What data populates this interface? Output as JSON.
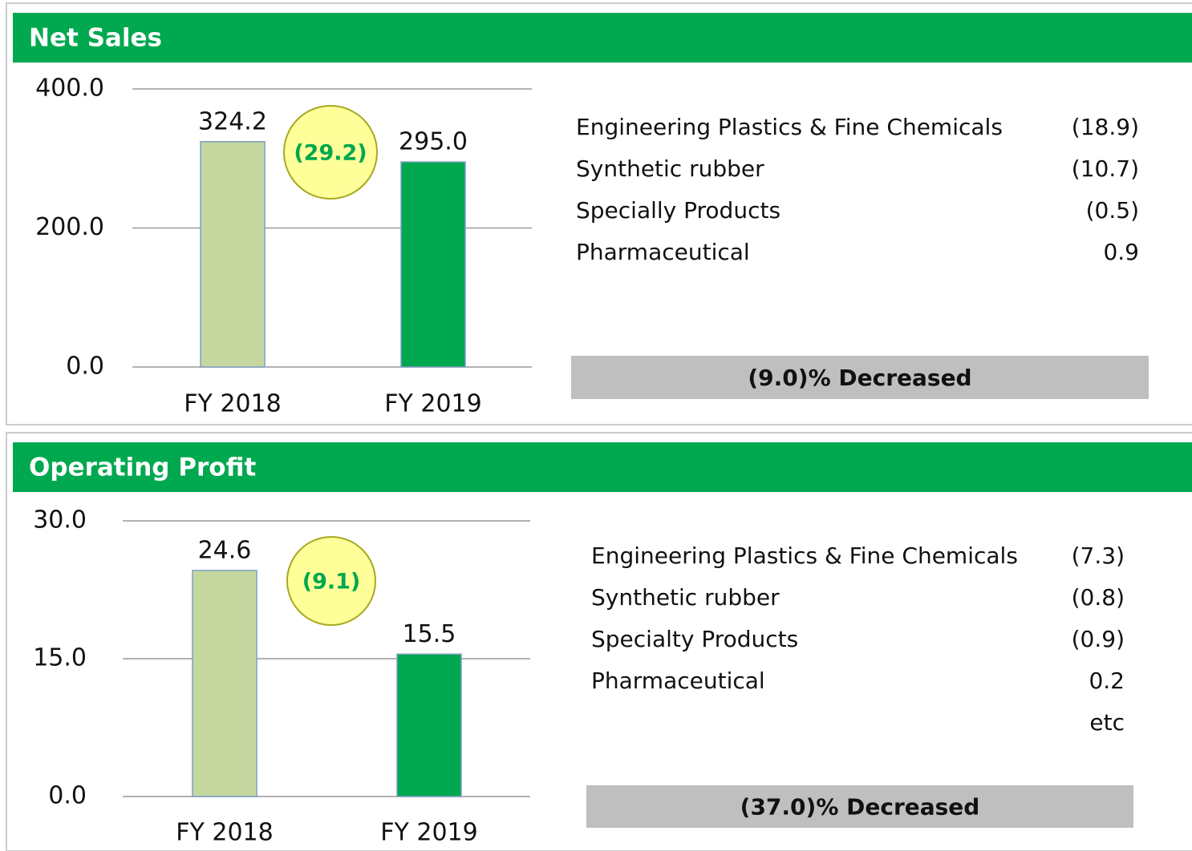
{
  "chart_data": [
    {
      "type": "bar",
      "title": "Net Sales",
      "categories": [
        "FY 2018",
        "FY 2019"
      ],
      "values": [
        324.2,
        295.0
      ],
      "value_labels": [
        "324.2",
        "295.0"
      ],
      "colors": [
        "#c5d79f",
        "#00a84f"
      ],
      "ylim": [
        0,
        400
      ],
      "yticks": [
        {
          "value": 0,
          "label": "0.0"
        },
        {
          "value": 200,
          "label": "200.0"
        },
        {
          "value": 400,
          "label": "400.0"
        }
      ],
      "grid": true,
      "change": "(29.2)",
      "breakdown": [
        {
          "label": "Engineering Plastics &  Fine Chemicals",
          "value": "(18.9)"
        },
        {
          "label": "Synthetic rubber",
          "value": "(10.7)"
        },
        {
          "label": "Specially Products",
          "value": "(0.5)"
        },
        {
          "label": "Pharmaceutical",
          "value": "0.9"
        }
      ],
      "summary": "(9.0)% Decreased"
    },
    {
      "type": "bar",
      "title": "Operating Profit",
      "categories": [
        "FY 2018",
        "FY 2019"
      ],
      "values": [
        24.6,
        15.5
      ],
      "value_labels": [
        "24.6",
        "15.5"
      ],
      "colors": [
        "#c5d79f",
        "#00a84f"
      ],
      "ylim": [
        0,
        30
      ],
      "yticks": [
        {
          "value": 0,
          "label": "0.0"
        },
        {
          "value": 15,
          "label": "15.0"
        },
        {
          "value": 30,
          "label": "30.0"
        }
      ],
      "grid": true,
      "change": "(9.1)",
      "breakdown": [
        {
          "label": "Engineering Plastics & Fine Chemicals",
          "value": "(7.3)"
        },
        {
          "label": "Synthetic rubber",
          "value": "(0.8)"
        },
        {
          "label": "Specialty Products",
          "value": "(0.9)"
        },
        {
          "label": "Pharmaceutical",
          "value": "0.2"
        }
      ],
      "note": "etc",
      "summary": "(37.0)% Decreased"
    }
  ]
}
